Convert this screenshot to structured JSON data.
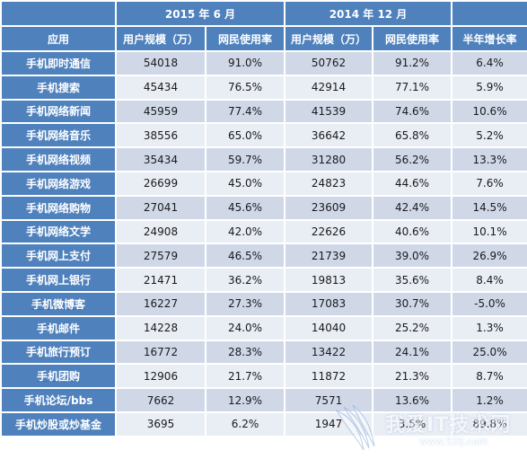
{
  "header": {
    "group_2015": "2015 年 6 月",
    "group_2014": "2014 年 12 月",
    "col_app": "应用",
    "col_users_2015": "用户规模（万）",
    "col_rate_2015": "网民使用率",
    "col_users_2014": "用户规模（万）",
    "col_rate_2014": "网民使用率",
    "col_growth": "半年增长率"
  },
  "rows": [
    {
      "app": "手机即时通信",
      "u2015": "54018",
      "r2015": "91.0%",
      "u2014": "50762",
      "r2014": "91.2%",
      "growth": "6.4%"
    },
    {
      "app": "手机搜索",
      "u2015": "45434",
      "r2015": "76.5%",
      "u2014": "42914",
      "r2014": "77.1%",
      "growth": "5.9%"
    },
    {
      "app": "手机网络新闻",
      "u2015": "45959",
      "r2015": "77.4%",
      "u2014": "41539",
      "r2014": "74.6%",
      "growth": "10.6%"
    },
    {
      "app": "手机网络音乐",
      "u2015": "38556",
      "r2015": "65.0%",
      "u2014": "36642",
      "r2014": "65.8%",
      "growth": "5.2%"
    },
    {
      "app": "手机网络视频",
      "u2015": "35434",
      "r2015": "59.7%",
      "u2014": "31280",
      "r2014": "56.2%",
      "growth": "13.3%"
    },
    {
      "app": "手机网络游戏",
      "u2015": "26699",
      "r2015": "45.0%",
      "u2014": "24823",
      "r2014": "44.6%",
      "growth": "7.6%"
    },
    {
      "app": "手机网络购物",
      "u2015": "27041",
      "r2015": "45.6%",
      "u2014": "23609",
      "r2014": "42.4%",
      "growth": "14.5%"
    },
    {
      "app": "手机网络文学",
      "u2015": "24908",
      "r2015": "42.0%",
      "u2014": "22626",
      "r2014": "40.6%",
      "growth": "10.1%"
    },
    {
      "app": "手机网上支付",
      "u2015": "27579",
      "r2015": "46.5%",
      "u2014": "21739",
      "r2014": "39.0%",
      "growth": "26.9%"
    },
    {
      "app": "手机网上银行",
      "u2015": "21471",
      "r2015": "36.2%",
      "u2014": "19813",
      "r2014": "35.6%",
      "growth": "8.4%"
    },
    {
      "app": "手机微博客",
      "u2015": "16227",
      "r2015": "27.3%",
      "u2014": "17083",
      "r2014": "30.7%",
      "growth": "-5.0%"
    },
    {
      "app": "手机邮件",
      "u2015": "14228",
      "r2015": "24.0%",
      "u2014": "14040",
      "r2014": "25.2%",
      "growth": "1.3%"
    },
    {
      "app": "手机旅行预订",
      "u2015": "16772",
      "r2015": "28.3%",
      "u2014": "13422",
      "r2014": "24.1%",
      "growth": "25.0%"
    },
    {
      "app": "手机团购",
      "u2015": "12906",
      "r2015": "21.7%",
      "u2014": "11872",
      "r2014": "21.3%",
      "growth": "8.7%"
    },
    {
      "app": "手机论坛/bbs",
      "u2015": "7662",
      "r2015": "12.9%",
      "u2014": "7571",
      "r2014": "13.6%",
      "growth": "1.2%"
    },
    {
      "app": "手机炒股或炒基金",
      "u2015": "3695",
      "r2015": "6.2%",
      "u2014": "1947",
      "r2014": "3.5%",
      "growth": "89.8%"
    }
  ],
  "watermark": {
    "text": "我爱IT技术网",
    "url": "www.52ij.com"
  },
  "colors": {
    "header_bg": "#4f81bd",
    "row_odd": "#d0d8e8",
    "row_even": "#e9edf4",
    "text": "#1a1a1a"
  }
}
